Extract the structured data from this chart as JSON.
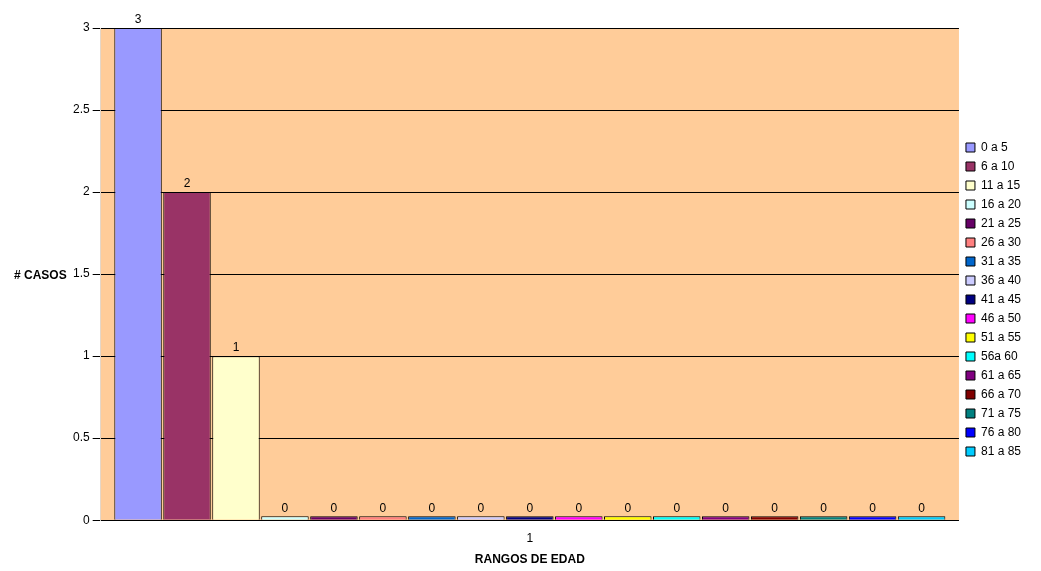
{
  "chart_data": {
    "type": "bar",
    "xlabel": "RANGOS DE EDAD",
    "ylabel": "# CASOS",
    "categories": [
      "1"
    ],
    "series": [
      {
        "name": "0 a 5",
        "color": "#9999ff",
        "values": [
          3
        ]
      },
      {
        "name": "6 a 10",
        "color": "#993366",
        "values": [
          2
        ]
      },
      {
        "name": "11 a 15",
        "color": "#ffffcc",
        "values": [
          1
        ]
      },
      {
        "name": "16 a 20",
        "color": "#ccffff",
        "values": [
          0
        ]
      },
      {
        "name": "21 a 25",
        "color": "#660066",
        "values": [
          0
        ]
      },
      {
        "name": "26 a 30",
        "color": "#ff8080",
        "values": [
          0
        ]
      },
      {
        "name": "31 a 35",
        "color": "#0066cc",
        "values": [
          0
        ]
      },
      {
        "name": "36 a 40",
        "color": "#ccccff",
        "values": [
          0
        ]
      },
      {
        "name": "41 a 45",
        "color": "#000080",
        "values": [
          0
        ]
      },
      {
        "name": "46 a 50",
        "color": "#ff00ff",
        "values": [
          0
        ]
      },
      {
        "name": "51 a 55",
        "color": "#ffff00",
        "values": [
          0
        ]
      },
      {
        "name": "56a 60",
        "color": "#00ffff",
        "values": [
          0
        ]
      },
      {
        "name": "61 a 65",
        "color": "#800080",
        "values": [
          0
        ]
      },
      {
        "name": "66 a 70",
        "color": "#800000",
        "values": [
          0
        ]
      },
      {
        "name": "71 a 75",
        "color": "#008080",
        "values": [
          0
        ]
      },
      {
        "name": "76 a 80",
        "color": "#0000ff",
        "values": [
          0
        ]
      },
      {
        "name": "81 a 85",
        "color": "#00ccff",
        "values": [
          0
        ]
      }
    ],
    "ylim": [
      0,
      3
    ],
    "yticks": [
      0,
      0.5,
      1,
      1.5,
      2,
      2.5,
      3
    ],
    "grid": "y",
    "legend": "right",
    "data_labels": true
  }
}
